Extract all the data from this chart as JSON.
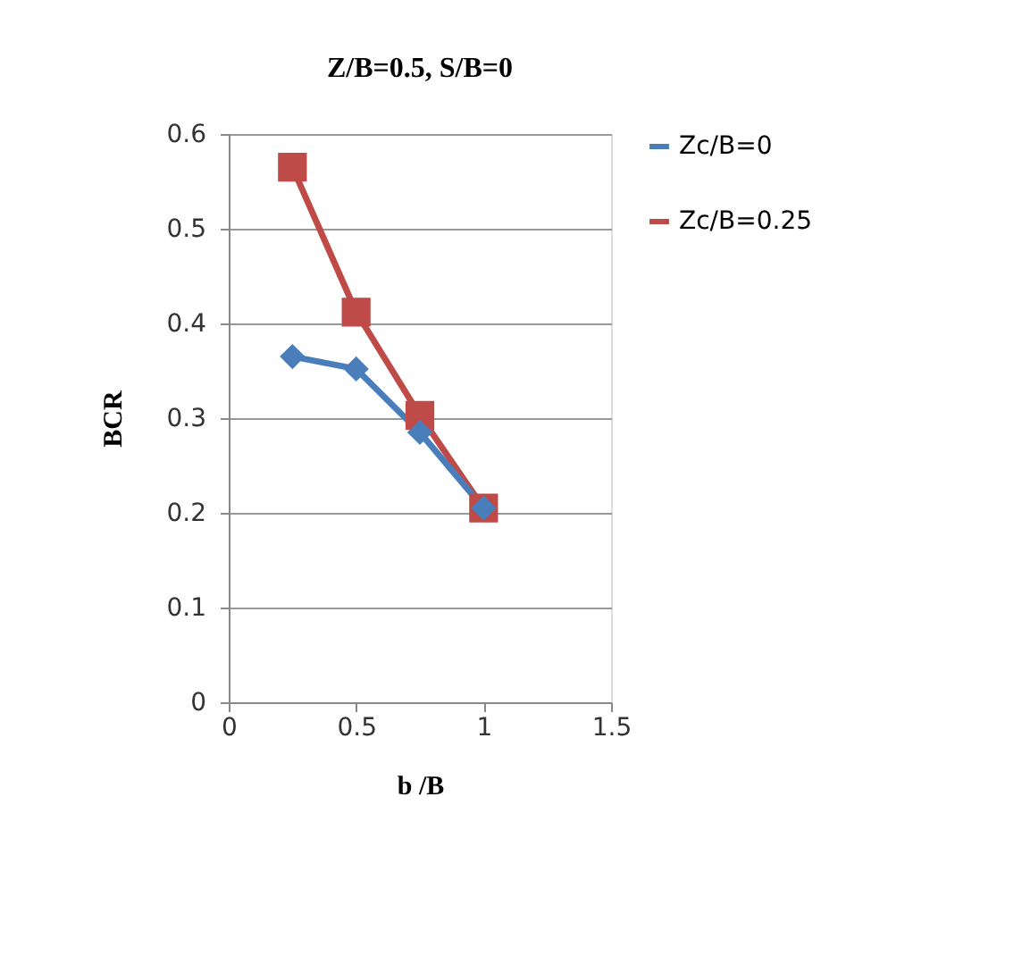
{
  "chart_data": {
    "type": "line",
    "title": "Z/B=0.5, S/B=0",
    "xlabel": "b /B",
    "ylabel": "BCR",
    "x": [
      0.25,
      0.5,
      0.75,
      1
    ],
    "series": [
      {
        "name": "Zc/B=0",
        "color": "#4a7ebb",
        "marker": "diamond",
        "values": [
          0.365,
          0.352,
          0.285,
          0.205
        ]
      },
      {
        "name": "Zc/B=0.25",
        "color": "#be4b48",
        "marker": "square",
        "values": [
          0.565,
          0.412,
          0.303,
          0.205
        ]
      }
    ],
    "xlim": [
      0,
      1.5
    ],
    "xticks": [
      0,
      0.5,
      1,
      1.5
    ],
    "ylim": [
      0,
      0.6
    ],
    "yticks": [
      0,
      0.1,
      0.2,
      0.3,
      0.4,
      0.5,
      0.6
    ],
    "grid": "y",
    "legend": "right"
  }
}
